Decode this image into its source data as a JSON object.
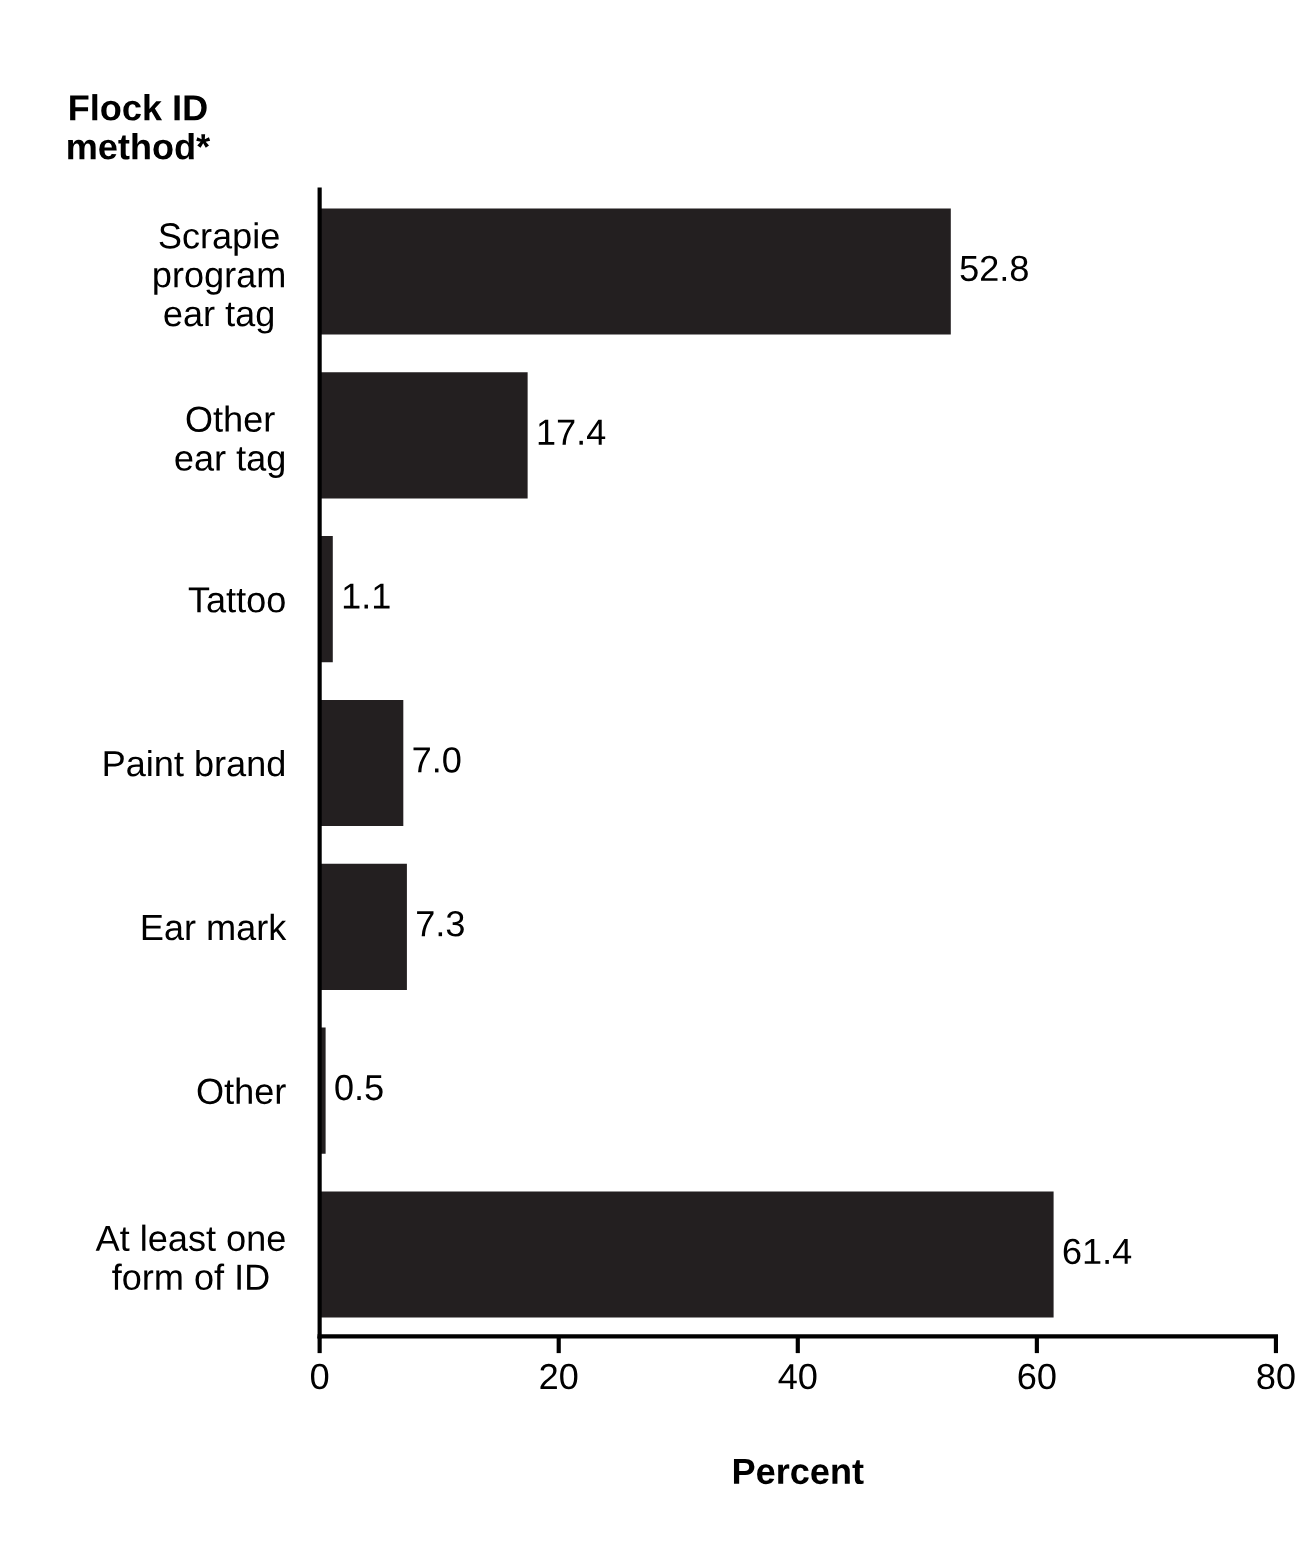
{
  "chart_data": {
    "type": "bar",
    "orientation": "horizontal",
    "ylabel": "Flock ID\nmethod*",
    "xlabel": "Percent",
    "categories": [
      "Scrapie\nprogram\near tag",
      "Other\near tag",
      "Tattoo",
      "Paint brand",
      "Ear mark",
      "Other",
      "At least one\nform of ID"
    ],
    "values": [
      52.8,
      17.4,
      1.1,
      7.0,
      7.3,
      0.5,
      61.4
    ],
    "color": "#231f20",
    "xlim": [
      0,
      80
    ],
    "xticks": [
      0,
      20,
      40,
      60,
      80
    ],
    "value_labels": [
      "52.8",
      "17.4",
      "1.1",
      "7.0",
      "7.3",
      "0.5",
      "61.4"
    ],
    "grid": false,
    "legend": false
  }
}
